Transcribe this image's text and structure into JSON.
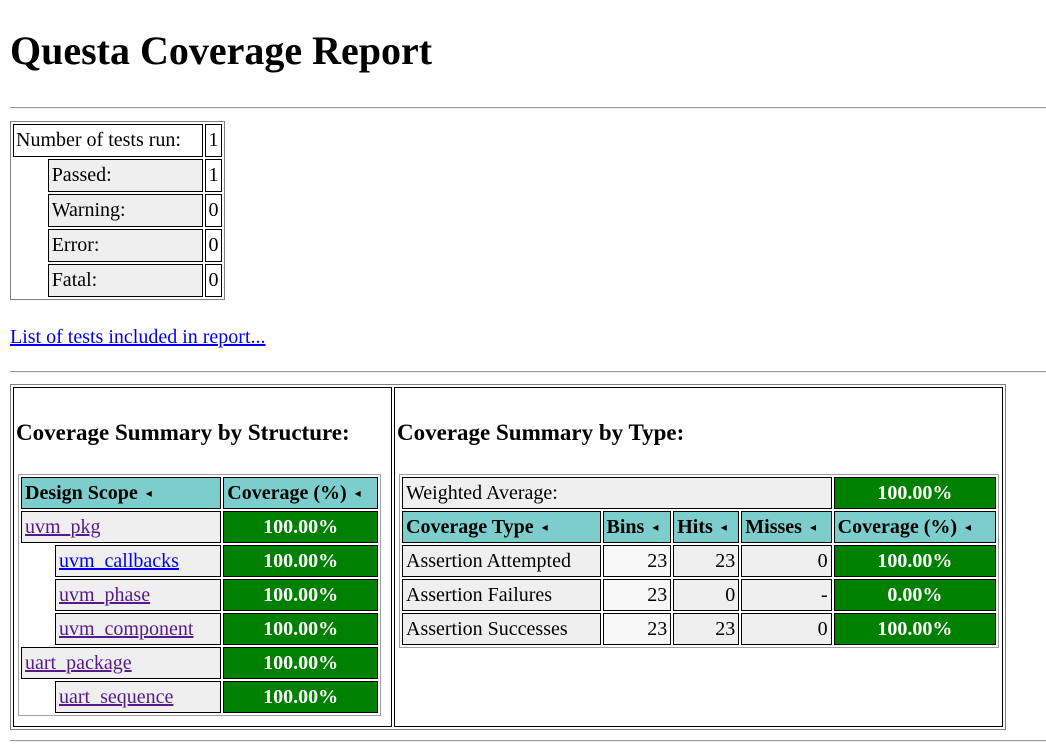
{
  "title": "Questa Coverage Report",
  "tests": {
    "run_label": "Number of tests run:",
    "run_value": "1",
    "rows": [
      {
        "label": "Passed:",
        "value": "1"
      },
      {
        "label": "Warning:",
        "value": "0"
      },
      {
        "label": "Error:",
        "value": "0"
      },
      {
        "label": "Fatal:",
        "value": "0"
      }
    ]
  },
  "test_list_link": "List of tests included in report...",
  "structure": {
    "title": "Coverage Summary by Structure:",
    "headers": {
      "scope": "Design Scope",
      "coverage": "Coverage (%)"
    },
    "rows": [
      {
        "name": "uvm_pkg",
        "coverage": "100.00%",
        "indent": 0
      },
      {
        "name": "uvm_callbacks",
        "coverage": "100.00%",
        "indent": 1
      },
      {
        "name": "uvm_phase",
        "coverage": "100.00%",
        "indent": 1
      },
      {
        "name": "uvm_component",
        "coverage": "100.00%",
        "indent": 1
      },
      {
        "name": "uart_package",
        "coverage": "100.00%",
        "indent": 0
      },
      {
        "name": "uart_sequence",
        "coverage": "100.00%",
        "indent": 1
      }
    ]
  },
  "type_summary": {
    "title": "Coverage Summary by Type:",
    "weighted_label": "Weighted Average:",
    "weighted_value": "100.00%",
    "headers": {
      "type": "Coverage Type",
      "bins": "Bins",
      "hits": "Hits",
      "misses": "Misses",
      "coverage": "Coverage (%)"
    },
    "rows": [
      {
        "type": "Assertion Attempted",
        "bins": "23",
        "hits": "23",
        "misses": "0",
        "coverage": "100.00%"
      },
      {
        "type": "Assertion Failures",
        "bins": "23",
        "hits": "0",
        "misses": "-",
        "coverage": "0.00%"
      },
      {
        "type": "Assertion Successes",
        "bins": "23",
        "hits": "23",
        "misses": "0",
        "coverage": "100.00%"
      }
    ]
  },
  "sort_icon": "◂",
  "colors": {
    "header_bg": "#7dcdcd",
    "coverage_ok": "#008000",
    "link": "#0000ee",
    "visited_link": "#551a8b"
  }
}
